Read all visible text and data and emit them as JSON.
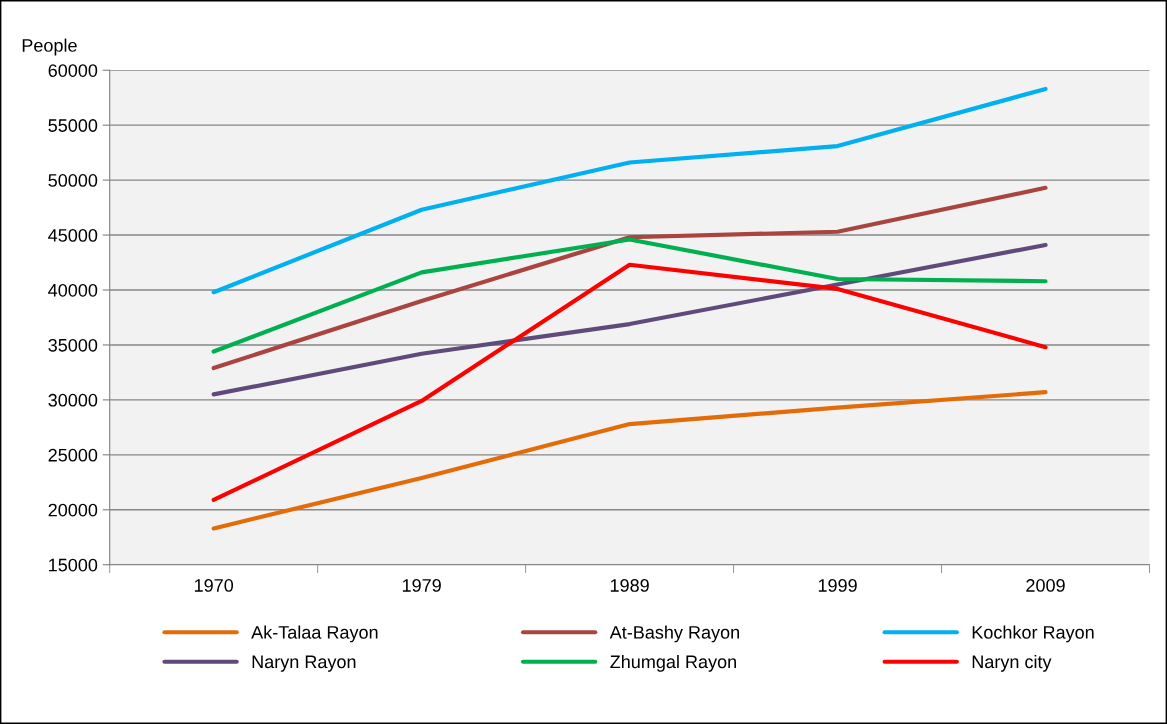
{
  "chart_data": {
    "type": "line",
    "ylabel": "People",
    "categories": [
      "1970",
      "1979",
      "1989",
      "1999",
      "2009"
    ],
    "series": [
      {
        "name": "Ak-Talaa Rayon",
        "color": "#e36c09",
        "values": [
          18300,
          22900,
          27800,
          29300,
          30700
        ]
      },
      {
        "name": "At-Bashy Rayon",
        "color": "#a9443e",
        "values": [
          32900,
          39000,
          44800,
          45300,
          49300
        ]
      },
      {
        "name": "Kochkor Rayon",
        "color": "#00b0f0",
        "values": [
          39800,
          47300,
          51600,
          53100,
          58300
        ]
      },
      {
        "name": "Naryn Rayon",
        "color": "#604a7b",
        "values": [
          30500,
          34200,
          36900,
          40500,
          44100
        ]
      },
      {
        "name": "Zhumgal Rayon",
        "color": "#00b050",
        "values": [
          34400,
          41600,
          44600,
          41000,
          40800
        ]
      },
      {
        "name": "Naryn city",
        "color": "#ff0000",
        "values": [
          20900,
          29900,
          42300,
          40100,
          34800
        ]
      }
    ],
    "ylim": [
      15000,
      60000
    ],
    "yticks": [
      15000,
      20000,
      25000,
      30000,
      35000,
      40000,
      45000,
      50000,
      55000,
      60000
    ],
    "grid": "y",
    "legend": "bottom",
    "marker": "none",
    "line_style": "solid"
  }
}
